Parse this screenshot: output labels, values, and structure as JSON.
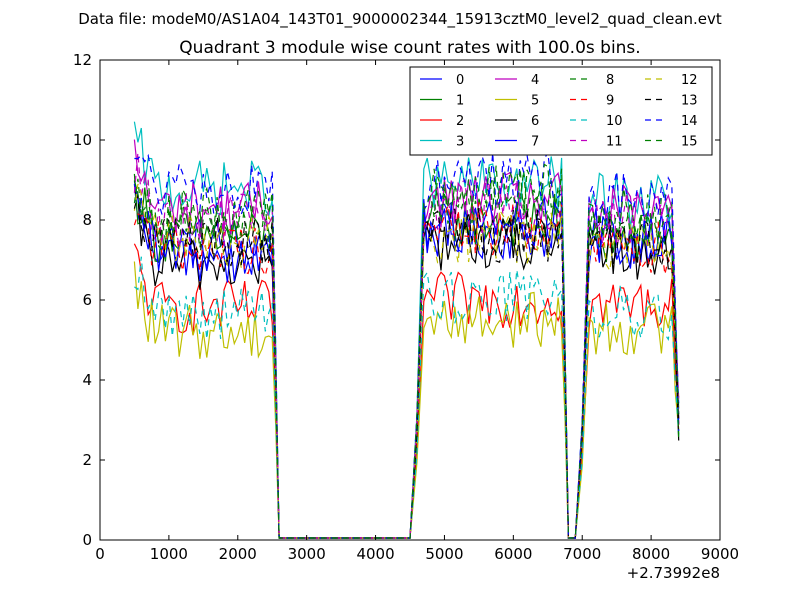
{
  "chart_data": {
    "type": "line",
    "suptitle": "Data file: modeM0/AS1A04_143T01_9000002344_15913cztM0_level2_quad_clean.evt",
    "title": "Quadrant 3 module wise count rates with 100.0s bins.",
    "xlabel": "",
    "ylabel": "",
    "x_offset_label": "+2.73992e8",
    "xlim": [
      0,
      9000
    ],
    "ylim": [
      0,
      12
    ],
    "x_ticks": [
      "0",
      "1000",
      "2000",
      "3000",
      "4000",
      "5000",
      "6000",
      "7000",
      "8000",
      "9000"
    ],
    "y_ticks": [
      "0",
      "2",
      "4",
      "6",
      "8",
      "10",
      "12"
    ],
    "grid": false,
    "legend_position": "top-right",
    "legend_columns": 4,
    "segments": [
      {
        "start": 500,
        "end": 2500
      },
      {
        "start": 4700,
        "end": 6700
      },
      {
        "start": 7100,
        "end": 8300
      }
    ],
    "series": [
      {
        "name": "0",
        "color": "#0000ff",
        "dash": false,
        "levels": [
          7.4,
          7.7,
          7.6
        ]
      },
      {
        "name": "1",
        "color": "#008000",
        "dash": false,
        "levels": [
          7.6,
          8.0,
          7.5
        ]
      },
      {
        "name": "2",
        "color": "#ff0000",
        "dash": false,
        "levels": [
          5.8,
          6.0,
          5.9
        ]
      },
      {
        "name": "3",
        "color": "#00bfbf",
        "dash": false,
        "levels": [
          8.8,
          8.9,
          8.5
        ]
      },
      {
        "name": "4",
        "color": "#bf00bf",
        "dash": false,
        "levels": [
          8.3,
          8.5,
          8.2
        ]
      },
      {
        "name": "5",
        "color": "#bfbf00",
        "dash": false,
        "levels": [
          5.2,
          5.5,
          5.3
        ]
      },
      {
        "name": "6",
        "color": "#000000",
        "dash": false,
        "levels": [
          6.9,
          7.4,
          7.2
        ]
      },
      {
        "name": "7",
        "color": "#0000ff",
        "dash": false,
        "levels": [
          7.1,
          7.9,
          7.4
        ]
      },
      {
        "name": "8",
        "color": "#008000",
        "dash": true,
        "levels": [
          7.9,
          8.6,
          8.0
        ]
      },
      {
        "name": "9",
        "color": "#ff0000",
        "dash": true,
        "levels": [
          7.3,
          7.8,
          7.3
        ]
      },
      {
        "name": "10",
        "color": "#00bfbf",
        "dash": true,
        "levels": [
          5.7,
          6.1,
          5.7
        ]
      },
      {
        "name": "11",
        "color": "#bf00bf",
        "dash": true,
        "levels": [
          8.0,
          8.3,
          8.0
        ]
      },
      {
        "name": "12",
        "color": "#bfbf00",
        "dash": true,
        "levels": [
          7.5,
          7.6,
          7.4
        ]
      },
      {
        "name": "13",
        "color": "#000000",
        "dash": true,
        "levels": [
          7.5,
          7.6,
          7.5
        ]
      },
      {
        "name": "14",
        "color": "#0000ff",
        "dash": true,
        "levels": [
          8.7,
          9.0,
          8.6
        ]
      },
      {
        "name": "15",
        "color": "#008000",
        "dash": true,
        "levels": [
          8.1,
          8.7,
          8.1
        ]
      }
    ]
  }
}
